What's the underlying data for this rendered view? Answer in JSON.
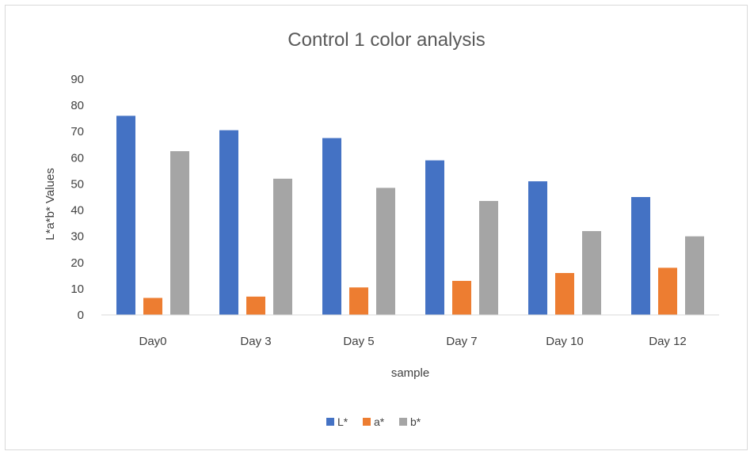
{
  "chart_data": {
    "type": "bar",
    "title": "Control 1 color analysis",
    "xlabel": "sample",
    "ylabel": "L*a*b* Values",
    "categories": [
      "Day0",
      "Day 3",
      "Day 5",
      "Day 7",
      "Day 10",
      "Day 12"
    ],
    "ylim": [
      0,
      90
    ],
    "yticks": [
      0,
      10,
      20,
      30,
      40,
      50,
      60,
      70,
      80,
      90
    ],
    "grid": false,
    "legend_position": "bottom",
    "series": [
      {
        "name": "L*",
        "color": "#4472c4",
        "values": [
          76,
          70.5,
          67.5,
          59,
          51,
          45
        ]
      },
      {
        "name": "a*",
        "color": "#ed7d31",
        "values": [
          6.5,
          7,
          10.5,
          13,
          16,
          18
        ]
      },
      {
        "name": "b*",
        "color": "#a5a5a5",
        "values": [
          62.5,
          52,
          48.5,
          43.5,
          32,
          30
        ]
      }
    ]
  }
}
